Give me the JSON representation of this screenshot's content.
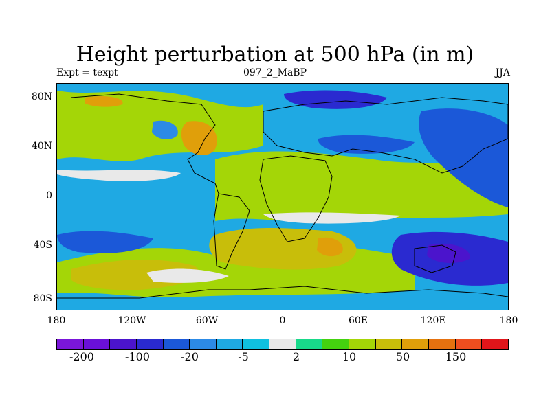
{
  "title": "Height perturbation at 500 hPa (in m)",
  "left_label": "Expt = texpt",
  "center_label": "097_2_MaBP",
  "right_label": "JJA",
  "y_ticks": [
    "80N",
    "40N",
    "0",
    "40S",
    "80S"
  ],
  "x_ticks": [
    "180",
    "120W",
    "60W",
    "0",
    "60E",
    "120E",
    "180"
  ],
  "colorbar": {
    "colors": [
      "#7a16d9",
      "#6a10d8",
      "#4b14cc",
      "#2a2ad0",
      "#1b58d8",
      "#2c8ae6",
      "#1fa9e3",
      "#10c0e0",
      "#e9e9e9",
      "#18d98a",
      "#44d20f",
      "#a4d607",
      "#c8be0a",
      "#e09f0a",
      "#e5710f",
      "#ee4e1f",
      "#e0151a"
    ],
    "labels": [
      "-200",
      "-100",
      "-20",
      "-5",
      "2",
      "10",
      "50",
      "150"
    ]
  }
}
